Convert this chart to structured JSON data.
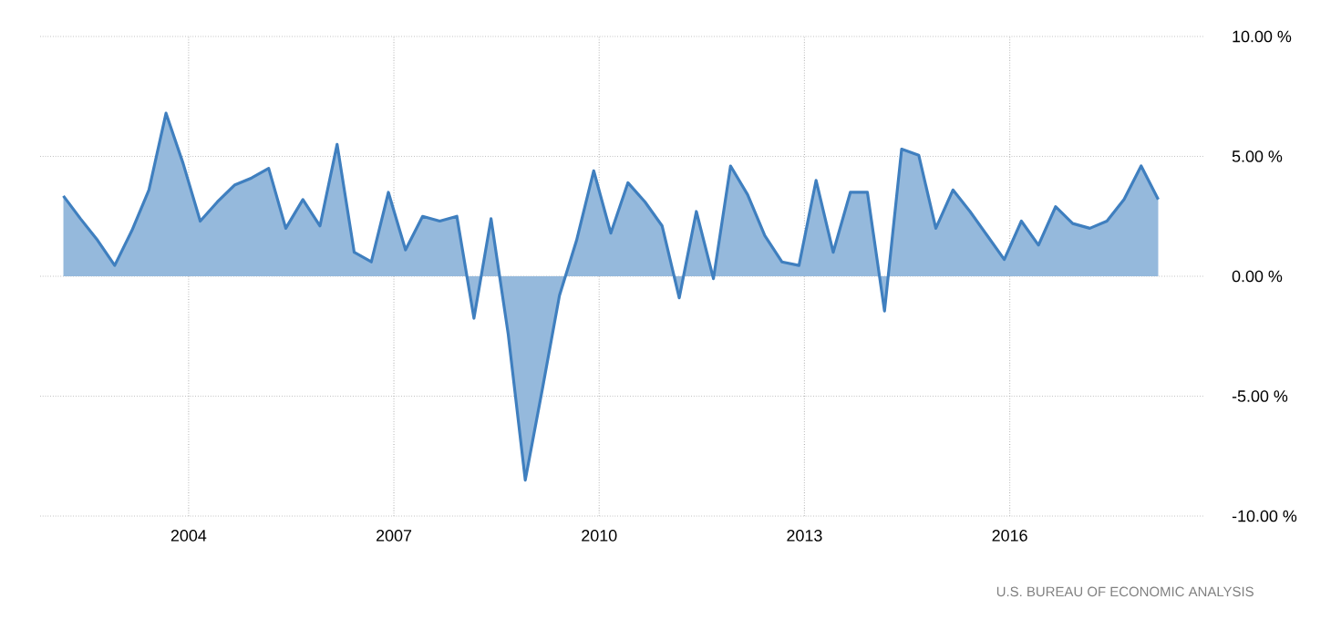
{
  "chart_data": {
    "type": "area",
    "x": [
      "2002-03",
      "2002-06",
      "2002-09",
      "2002-12",
      "2003-03",
      "2003-06",
      "2003-09",
      "2003-12",
      "2004-03",
      "2004-06",
      "2004-09",
      "2004-12",
      "2005-03",
      "2005-06",
      "2005-09",
      "2005-12",
      "2006-03",
      "2006-06",
      "2006-09",
      "2006-12",
      "2007-03",
      "2007-06",
      "2007-09",
      "2007-12",
      "2008-03",
      "2008-06",
      "2008-09",
      "2008-12",
      "2009-03",
      "2009-06",
      "2009-09",
      "2009-12",
      "2010-03",
      "2010-06",
      "2010-09",
      "2010-12",
      "2011-03",
      "2011-06",
      "2011-09",
      "2011-12",
      "2012-03",
      "2012-06",
      "2012-09",
      "2012-12",
      "2013-03",
      "2013-06",
      "2013-09",
      "2013-12",
      "2014-03",
      "2014-06",
      "2014-09",
      "2014-12",
      "2015-03",
      "2015-06",
      "2015-09",
      "2015-12",
      "2016-03",
      "2016-06",
      "2016-09",
      "2016-12",
      "2017-03",
      "2017-06",
      "2017-09",
      "2017-12",
      "2018-03"
    ],
    "series": [
      {
        "color": "#3f7fbf",
        "values": [
          3.35,
          2.4,
          1.5,
          0.45,
          1.9,
          3.6,
          6.8,
          4.7,
          2.3,
          3.1,
          3.8,
          4.1,
          4.5,
          2.0,
          3.2,
          2.1,
          5.5,
          1.0,
          0.6,
          3.5,
          1.1,
          2.5,
          2.3,
          2.5,
          -1.75,
          2.4,
          -2.4,
          -8.5,
          -4.7,
          -0.8,
          1.5,
          4.4,
          1.8,
          3.9,
          3.1,
          2.1,
          -0.9,
          2.7,
          -0.1,
          4.6,
          3.4,
          1.7,
          0.6,
          0.45,
          4.0,
          1.0,
          3.5,
          3.5,
          -1.45,
          5.3,
          5.05,
          2.0,
          3.6,
          2.7,
          1.7,
          0.7,
          2.3,
          1.3,
          2.9,
          2.2,
          2.0,
          2.3,
          3.2,
          4.6,
          3.2
        ]
      }
    ],
    "xlim": [
      "2001-11",
      "2018-11"
    ],
    "xticks": [
      "2004",
      "2007",
      "2010",
      "2013",
      "2016"
    ],
    "ylim": [
      -10,
      10
    ],
    "yticks": [
      {
        "value": -10,
        "label": "-10.00 %"
      },
      {
        "value": -5,
        "label": "-5.00 %"
      },
      {
        "value": 0,
        "label": "0.00 %"
      },
      {
        "value": 5,
        "label": "5.00 %"
      },
      {
        "value": 10,
        "label": "10.00 %"
      }
    ],
    "grid": true,
    "annotations": [
      "U.S. BUREAU OF ECONOMIC ANALYSIS"
    ]
  }
}
